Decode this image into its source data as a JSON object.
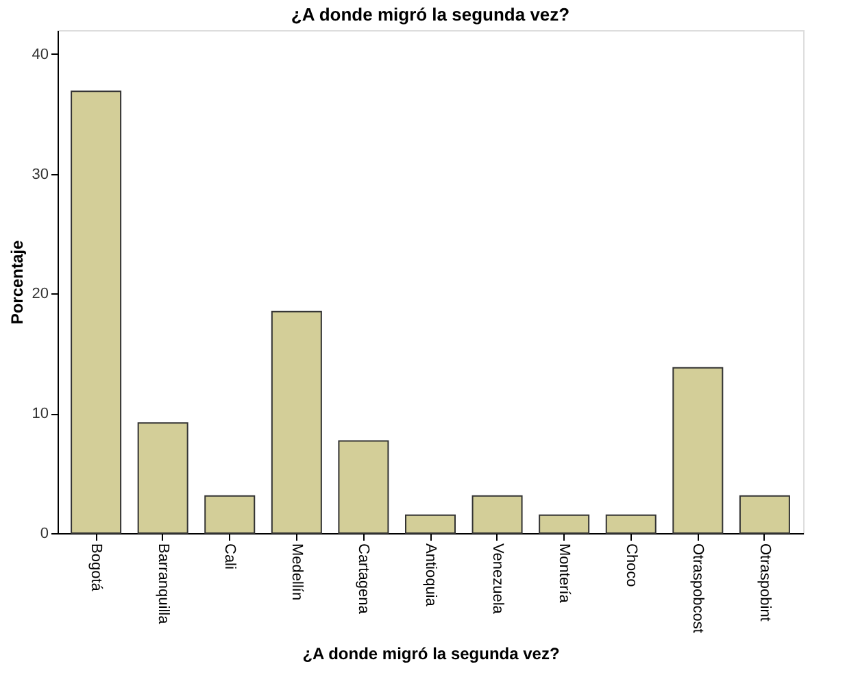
{
  "chart_data": {
    "type": "bar",
    "title": "¿A donde migró la segunda vez?",
    "xlabel": "¿A donde migró la segunda vez?",
    "ylabel": "Porcentaje",
    "categories": [
      "Bogotá",
      "Barranquilla",
      "Cali",
      "Medellín",
      "Cartagena",
      "Antioquia",
      "Venezuela",
      "Montería",
      "Choco",
      "Otraspobcost",
      "Otraspobint"
    ],
    "values": [
      36.9,
      9.2,
      3.1,
      18.5,
      7.7,
      1.5,
      3.1,
      1.5,
      1.5,
      13.8,
      3.1
    ],
    "color": "#d3ce98",
    "ylim": [
      0,
      42
    ],
    "yticks": [
      0,
      10,
      20,
      30,
      40
    ],
    "grid": false
  }
}
